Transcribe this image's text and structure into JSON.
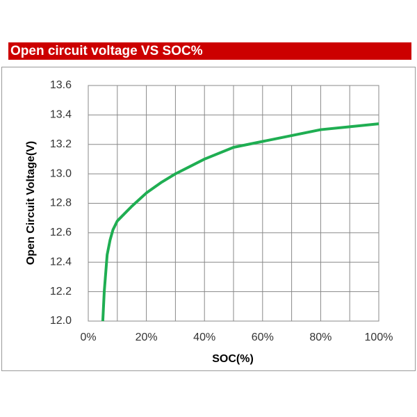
{
  "chart_data": {
    "type": "line",
    "title": "Open circuit voltage VS SOC%",
    "x_label": "SOC(%)",
    "y_label": "Open Circuit Voltage(V)",
    "xlim": [
      0,
      100
    ],
    "ylim": [
      12,
      13.6
    ],
    "xticks": [
      {
        "value": 0,
        "label": "0%"
      },
      {
        "value": 20,
        "label": "20%"
      },
      {
        "value": 40,
        "label": "40%"
      },
      {
        "value": 60,
        "label": "60%"
      },
      {
        "value": 80,
        "label": "80%"
      },
      {
        "value": 100,
        "label": "100%"
      }
    ],
    "x_minor_grid": [
      10,
      30,
      50,
      70,
      90
    ],
    "yticks": [
      {
        "value": 12,
        "label": "12.0"
      },
      12.2,
      12.4,
      12.6,
      12.8,
      {
        "value": 13,
        "label": "13.0"
      },
      13.2,
      13.4,
      13.6
    ],
    "grid": true,
    "series": [
      {
        "color": "#1fae52",
        "x": [
          5,
          5.5,
          6.5,
          7.5,
          8.5,
          10,
          12,
          15,
          20,
          25,
          30,
          35,
          40,
          50,
          60,
          70,
          80,
          90,
          100
        ],
        "values": [
          12.0,
          12.2,
          12.45,
          12.55,
          12.62,
          12.68,
          12.72,
          12.78,
          12.87,
          12.94,
          13.0,
          13.05,
          13.1,
          13.18,
          13.22,
          13.26,
          13.3,
          13.32,
          13.34
        ]
      }
    ]
  }
}
